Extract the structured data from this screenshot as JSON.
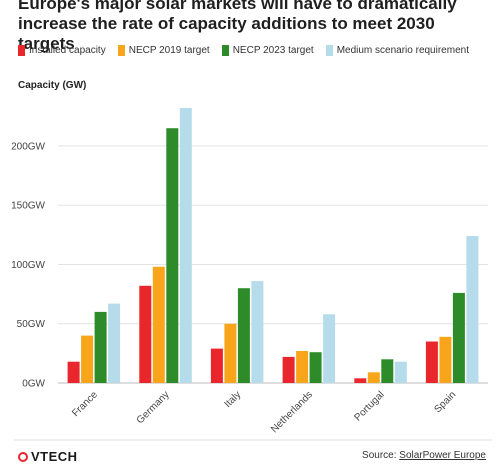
{
  "title": "Europe's major solar markets will have to dramatically increase the rate of capacity additions to meet 2030 targets",
  "logo": {
    "text": "VTECH",
    "icon": "pvtech-logo-icon",
    "color": "#e8262c"
  },
  "footer": {
    "source_prefix": "Source: ",
    "source_link": "SolarPower Europe"
  },
  "chart_data": {
    "type": "bar",
    "ylabel": "Capacity (GW)",
    "xlabel": "",
    "ylim": [
      0,
      232
    ],
    "yticks": [
      0,
      50,
      100,
      150,
      200
    ],
    "ytick_labels": [
      "0GW",
      "50GW",
      "100GW",
      "150GW",
      "200GW"
    ],
    "grid": true,
    "legend_position": "top",
    "categories": [
      "France",
      "Germany",
      "Italy",
      "Netherlands",
      "Portugal",
      "Spain"
    ],
    "series": [
      {
        "name": "Installed capacity",
        "color": "#e8262c",
        "values": [
          18,
          82,
          29,
          22,
          4,
          35
        ]
      },
      {
        "name": "NECP 2019 target",
        "color": "#f9a51b",
        "values": [
          40,
          98,
          50,
          27,
          9,
          39
        ]
      },
      {
        "name": "NECP 2023 target",
        "color": "#2e8b2a",
        "values": [
          60,
          215,
          80,
          26,
          20,
          76
        ]
      },
      {
        "name": "Medium scenario requirement",
        "color": "#b6dceb",
        "values": [
          67,
          232,
          86,
          58,
          18,
          124
        ]
      }
    ]
  }
}
